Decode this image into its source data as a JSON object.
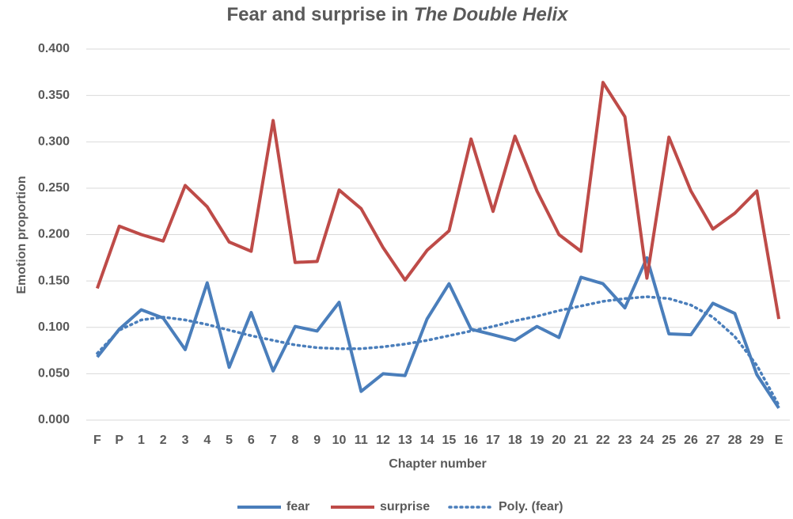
{
  "chart_data": {
    "type": "line",
    "title": [
      "Fear and surprise in",
      "The Double Helix"
    ],
    "x_label": "Chapter number",
    "y_label": "Emotion proportion",
    "categories": [
      "F",
      "P",
      "1",
      "2",
      "3",
      "4",
      "5",
      "6",
      "7",
      "8",
      "9",
      "10",
      "11",
      "12",
      "13",
      "14",
      "15",
      "16",
      "17",
      "18",
      "19",
      "20",
      "21",
      "22",
      "23",
      "24",
      "25",
      "26",
      "27",
      "28",
      "29",
      "E"
    ],
    "ylim": [
      0,
      0.4
    ],
    "yticks": [
      {
        "value": 0,
        "label": "0.000"
      },
      {
        "value": 0.05,
        "label": "0.050"
      },
      {
        "value": 0.1,
        "label": "0.100"
      },
      {
        "value": 0.15,
        "label": "0.150"
      },
      {
        "value": 0.2,
        "label": "0.200"
      },
      {
        "value": 0.25,
        "label": "0.250"
      },
      {
        "value": 0.3,
        "label": "0.300"
      },
      {
        "value": 0.35,
        "label": "0.350"
      },
      {
        "value": 0.4,
        "label": "0.400"
      }
    ],
    "grid": true,
    "legend": "bottom",
    "series": [
      {
        "name": "fear",
        "color": "#4a7ebb",
        "line_style": "solid",
        "values": [
          0.068,
          0.098,
          0.119,
          0.11,
          0.076,
          0.148,
          0.057,
          0.116,
          0.053,
          0.101,
          0.096,
          0.127,
          0.031,
          0.05,
          0.048,
          0.109,
          0.147,
          0.098,
          0.092,
          0.086,
          0.101,
          0.089,
          0.154,
          0.147,
          0.121,
          0.175,
          0.093,
          0.092,
          0.126,
          0.115,
          0.049,
          0.013
        ]
      },
      {
        "name": "surprise",
        "color": "#be4b48",
        "line_style": "solid",
        "values": [
          0.142,
          0.209,
          0.2,
          0.193,
          0.253,
          0.23,
          0.192,
          0.182,
          0.323,
          0.17,
          0.171,
          0.248,
          0.228,
          0.186,
          0.151,
          0.183,
          0.204,
          0.303,
          0.225,
          0.306,
          0.247,
          0.2,
          0.182,
          0.364,
          0.327,
          0.153,
          0.305,
          0.247,
          0.206,
          0.223,
          0.247,
          0.109
        ]
      },
      {
        "name": "Poly. (fear)",
        "color": "#4a7ebb",
        "line_style": "dotted",
        "values": [
          0.072,
          0.097,
          0.108,
          0.111,
          0.108,
          0.103,
          0.097,
          0.091,
          0.086,
          0.081,
          0.078,
          0.077,
          0.077,
          0.079,
          0.082,
          0.086,
          0.091,
          0.096,
          0.101,
          0.107,
          0.112,
          0.118,
          0.123,
          0.128,
          0.131,
          0.133,
          0.131,
          0.124,
          0.111,
          0.09,
          0.059,
          0.016
        ]
      }
    ]
  }
}
